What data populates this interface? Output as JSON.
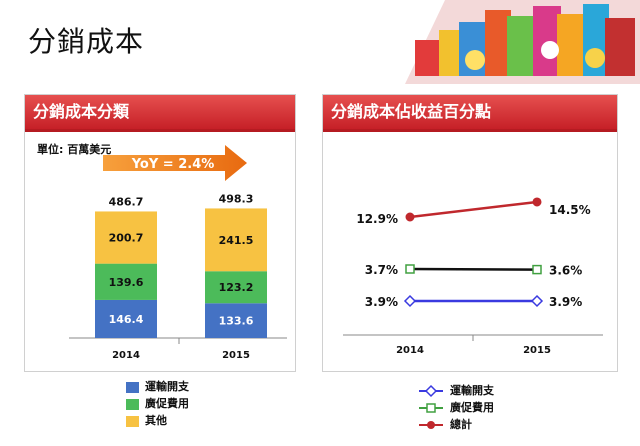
{
  "page": {
    "title": "分銷成本"
  },
  "left_panel": {
    "header": "分銷成本分類",
    "unit": "單位: 百萬美元",
    "yoy_label": "YoY = 2.4%"
  },
  "right_panel": {
    "header": "分銷成本佔收益百分點"
  },
  "chart_data": [
    {
      "type": "bar",
      "stacked": true,
      "categories": [
        "2014",
        "2015"
      ],
      "totals": [
        486.7,
        498.3
      ],
      "total_labels": [
        "486.7",
        "498.3"
      ],
      "series": [
        {
          "name": "運輸開支",
          "color": "#4472c4",
          "values": [
            146.4,
            133.6
          ],
          "labels": [
            "146.4",
            "133.6"
          ]
        },
        {
          "name": "廣促費用",
          "color": "#4cbb5a",
          "values": [
            139.6,
            123.2
          ],
          "labels": [
            "139.6",
            "123.2"
          ]
        },
        {
          "name": "其他",
          "color": "#f7c242",
          "values": [
            200.7,
            241.5
          ],
          "labels": [
            "200.7",
            "241.5"
          ]
        }
      ],
      "ylim": [
        0,
        500
      ],
      "grid": false,
      "legend": "bottom"
    },
    {
      "type": "line",
      "categories": [
        "2014",
        "2015"
      ],
      "series": [
        {
          "name": "運輸開支",
          "color": "#3a3ae0",
          "marker": "diamond",
          "values": [
            3.9,
            3.9
          ],
          "labels": [
            "3.9%",
            "3.9%"
          ]
        },
        {
          "name": "廣促費用",
          "color": "#40a040",
          "marker": "square",
          "values": [
            3.7,
            3.6
          ],
          "labels": [
            "3.7%",
            "3.6%"
          ]
        },
        {
          "name": "總計",
          "color": "#c0282d",
          "marker": "circle",
          "values": [
            12.9,
            14.5
          ],
          "labels": [
            "12.9%",
            "14.5%"
          ]
        }
      ],
      "grid": false,
      "legend": "bottom"
    }
  ],
  "banner": {
    "icon": "product-collage-image"
  }
}
